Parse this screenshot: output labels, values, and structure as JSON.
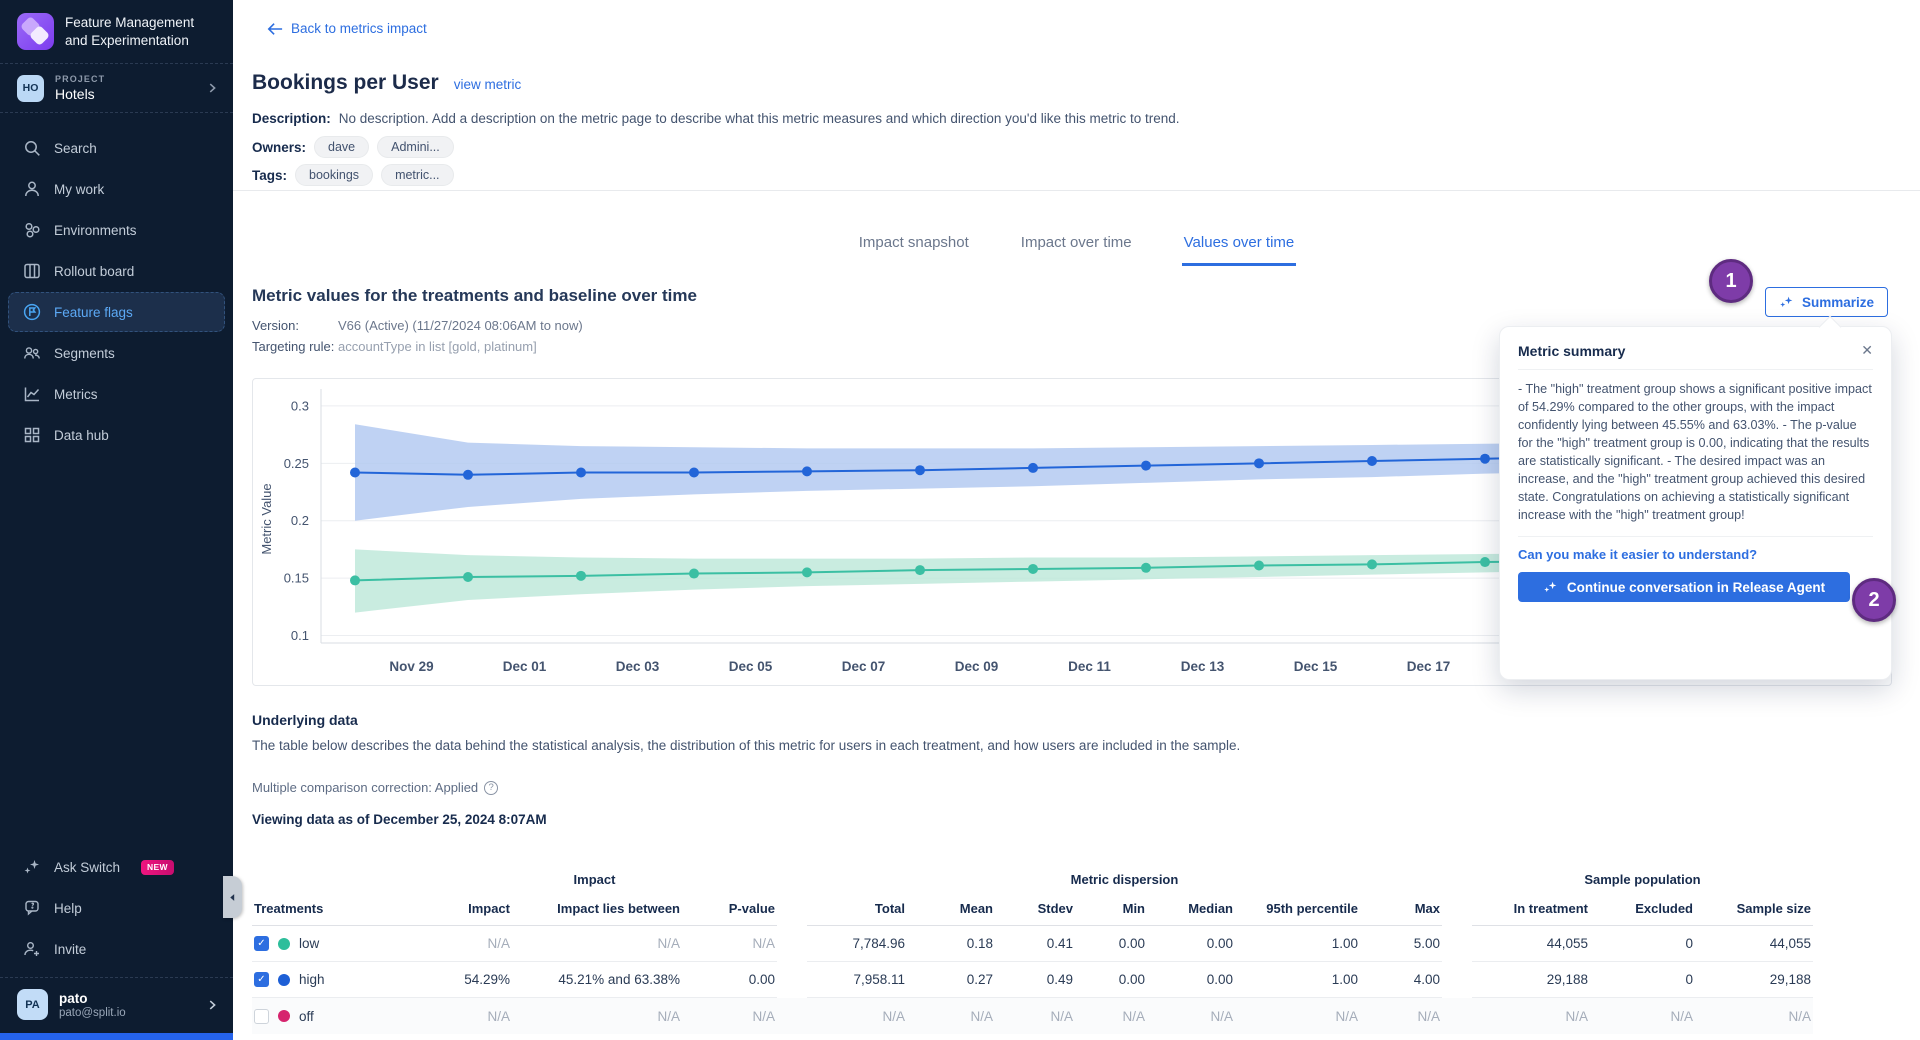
{
  "colors": {
    "accent_blue": "#2D6EE0",
    "step_badge_purple": "#7E3CA8",
    "new_badge_pink": "#F0157F",
    "sidebar_bg": "#0D1C30",
    "series_high_blue": "#2265D8",
    "series_low_teal": "#3BBFA3",
    "off_dot_crimson": "#D6246E"
  },
  "sidebar": {
    "brand": "Feature Management and Experimentation",
    "project": {
      "label": "PROJECT",
      "name": "Hotels",
      "badge": "HO"
    },
    "items": [
      {
        "label": "Search"
      },
      {
        "label": "My work"
      },
      {
        "label": "Environments"
      },
      {
        "label": "Rollout board"
      },
      {
        "label": "Feature flags"
      },
      {
        "label": "Segments"
      },
      {
        "label": "Metrics"
      },
      {
        "label": "Data hub"
      }
    ],
    "active_item": "Feature flags",
    "bottom_items": [
      {
        "label": "Ask Switch",
        "badge": "NEW"
      },
      {
        "label": "Help"
      },
      {
        "label": "Invite"
      }
    ],
    "user": {
      "initials": "PA",
      "name": "pato",
      "email": "pato@split.io"
    }
  },
  "header": {
    "back_link": "Back to metrics impact",
    "title": "Bookings per User",
    "view_metric": "view metric",
    "description_label": "Description:",
    "description": "No description. Add a description on the metric page to describe what this metric measures and which direction you'd like this metric to trend.",
    "owners_label": "Owners:",
    "owners": [
      "dave",
      "Admini..."
    ],
    "tags_label": "Tags:",
    "tags": [
      "bookings",
      "metric..."
    ]
  },
  "tabs": [
    {
      "label": "Impact snapshot",
      "active": false
    },
    {
      "label": "Impact over time",
      "active": false
    },
    {
      "label": "Values over time",
      "active": true
    }
  ],
  "metric_section": {
    "title": "Metric values for the treatments and baseline over time",
    "version_label": "Version:",
    "version_value": "V66 (Active) (11/27/2024 08:06AM to now)",
    "targeting_label": "Targeting rule:",
    "targeting_value": "accountType in list [gold, platinum]",
    "summarize_button": "Summarize",
    "step1": "1",
    "step2": "2"
  },
  "summary_panel": {
    "title": "Metric summary",
    "close": "✕",
    "body": "- The \"high\" treatment group shows a significant positive impact of 54.29% compared to the other groups, with the impact confidently lying between 45.55% and 63.03%. - The p-value for the \"high\" treatment group is 0.00, indicating that the results are statistically significant. - The desired impact was an increase, and the \"high\" treatment group achieved this desired state. Congratulations on achieving a statistically significant increase with the \"high\" treatment group!",
    "link": "Can you make it easier to understand?",
    "button": "Continue conversation in Release Agent"
  },
  "underlying": {
    "title": "Underlying data",
    "description": "The table below describes the data behind the statistical analysis, the distribution of this metric for users in each treatment, and how users are included in the sample.",
    "correction": "Multiple comparison correction: Applied",
    "viewing": "Viewing data as of December 25, 2024 8:07AM"
  },
  "table": {
    "group_headers": [
      "Impact",
      "Metric dispersion",
      "Sample population"
    ],
    "columns": [
      "Treatments",
      "Impact",
      "Impact lies between",
      "P-value",
      "Total",
      "Mean",
      "Stdev",
      "Min",
      "Median",
      "95th percentile",
      "Max",
      "In treatment",
      "Excluded",
      "Sample size"
    ],
    "rows": [
      {
        "name": "low",
        "checked": true,
        "color": "#2EBE9B",
        "values": [
          "N/A",
          "N/A",
          "N/A",
          "7,784.96",
          "0.18",
          "0.41",
          "0.00",
          "0.00",
          "1.00",
          "5.00",
          "44,055",
          "0",
          "44,055"
        ]
      },
      {
        "name": "high",
        "checked": true,
        "color": "#1D5FD6",
        "values": [
          "54.29%",
          "45.21% and 63.38%",
          "0.00",
          "7,958.11",
          "0.27",
          "0.49",
          "0.00",
          "0.00",
          "1.00",
          "4.00",
          "29,188",
          "0",
          "29,188"
        ]
      },
      {
        "name": "off",
        "checked": false,
        "color": "#D6246E",
        "values": [
          "N/A",
          "N/A",
          "N/A",
          "N/A",
          "N/A",
          "N/A",
          "N/A",
          "N/A",
          "N/A",
          "N/A",
          "N/A",
          "N/A",
          "N/A"
        ]
      }
    ]
  },
  "chart_data": {
    "type": "line",
    "title": "Metric values for the treatments and baseline over time",
    "xlabel": "",
    "ylabel": "Metric Value",
    "ylim": [
      0.1,
      0.3
    ],
    "yticks": [
      0.3,
      0.25,
      0.2,
      0.15,
      0.1
    ],
    "x_tick_labels": [
      "Nov 29",
      "Dec 01",
      "Dec 03",
      "Dec 05",
      "Dec 07",
      "Dec 09",
      "Dec 11",
      "Dec 13",
      "Dec 15",
      "Dec 17"
    ],
    "x_dates": [
      "Nov 28",
      "Nov 30",
      "Dec 02",
      "Dec 04",
      "Dec 06",
      "Dec 08",
      "Dec 10",
      "Dec 12",
      "Dec 14",
      "Dec 16",
      "Dec 18",
      "Dec 20"
    ],
    "grid": true,
    "legend_position": "none",
    "series": [
      {
        "name": "high",
        "color": "#2265D8",
        "band_color": "#AFC7F0",
        "values": [
          0.242,
          0.24,
          0.242,
          0.242,
          0.243,
          0.244,
          0.246,
          0.248,
          0.25,
          0.252,
          0.254,
          0.256
        ],
        "band_upper": [
          0.284,
          0.268,
          0.265,
          0.264,
          0.263,
          0.263,
          0.263,
          0.264,
          0.265,
          0.266,
          0.267,
          0.268
        ],
        "band_lower": [
          0.2,
          0.212,
          0.219,
          0.223,
          0.226,
          0.228,
          0.23,
          0.233,
          0.236,
          0.238,
          0.241,
          0.243
        ]
      },
      {
        "name": "low",
        "color": "#3BBFA3",
        "band_color": "#BCE7D8",
        "values": [
          0.148,
          0.151,
          0.152,
          0.154,
          0.155,
          0.157,
          0.158,
          0.159,
          0.161,
          0.162,
          0.164,
          0.165
        ],
        "band_upper": [
          0.175,
          0.17,
          0.168,
          0.167,
          0.167,
          0.167,
          0.168,
          0.168,
          0.169,
          0.17,
          0.171,
          0.172
        ],
        "band_lower": [
          0.12,
          0.131,
          0.136,
          0.14,
          0.143,
          0.145,
          0.147,
          0.149,
          0.151,
          0.153,
          0.155,
          0.157
        ]
      }
    ]
  }
}
